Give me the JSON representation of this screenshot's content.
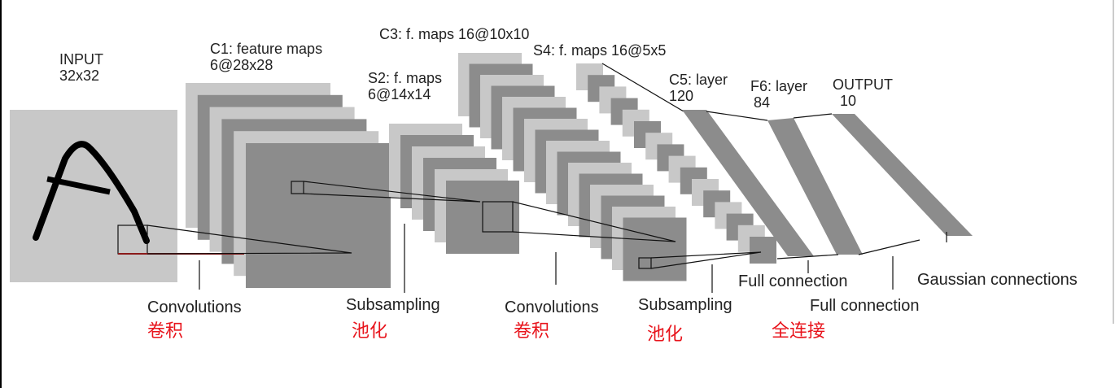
{
  "title_labels": {
    "input": [
      "INPUT",
      "32x32"
    ],
    "c1": [
      "C1: feature maps",
      "6@28x28"
    ],
    "s2": [
      "S2: f. maps",
      "6@14x14"
    ],
    "c3": [
      "C3: f. maps 16@10x10"
    ],
    "s4": [
      "S4: f. maps 16@5x5"
    ],
    "c5": [
      "C5: layer",
      "120"
    ],
    "f6": [
      "F6: layer",
      "84"
    ],
    "output": [
      "OUTPUT",
      "10"
    ]
  },
  "operations": [
    {
      "label": "Convolutions",
      "cn": "卷积"
    },
    {
      "label": "Subsampling",
      "cn": "池化"
    },
    {
      "label": "Convolutions",
      "cn": "卷积"
    },
    {
      "label": "Subsampling",
      "cn": "池化"
    },
    {
      "label": "Full connection",
      "cn": "全连接"
    },
    {
      "label": "Full connection"
    },
    {
      "label": "Gaussian connections"
    }
  ]
}
